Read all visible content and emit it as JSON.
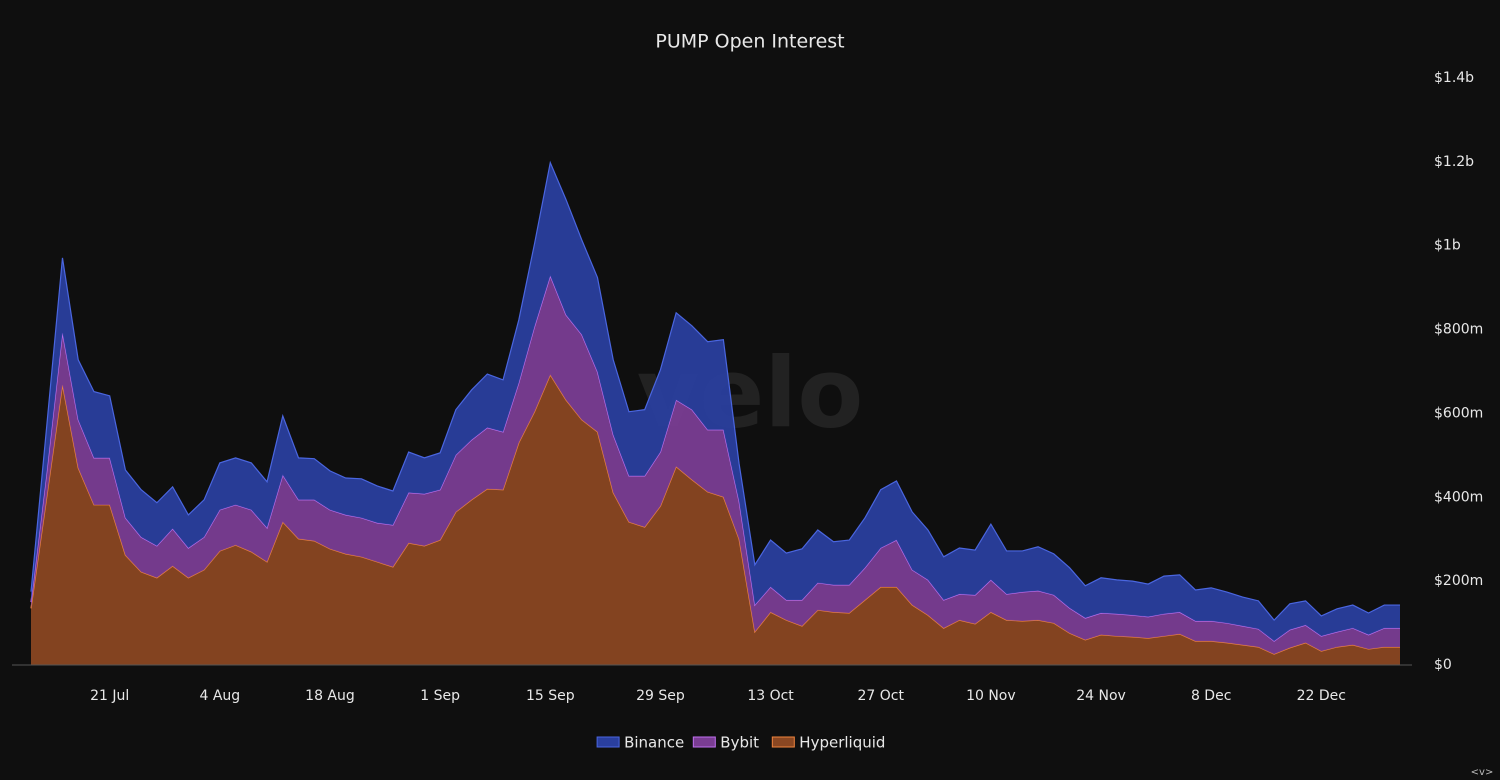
{
  "chart_data": {
    "type": "stacked_area",
    "title": "PUMP Open Interest",
    "watermark": "velo",
    "corner_mark": "<v>",
    "x": [
      "11 Jul",
      "13 Jul",
      "15 Jul",
      "17 Jul",
      "19 Jul",
      "21 Jul",
      "23 Jul",
      "25 Jul",
      "27 Jul",
      "29 Jul",
      "31 Jul",
      "2 Aug",
      "4 Aug",
      "6 Aug",
      "8 Aug",
      "10 Aug",
      "12 Aug",
      "14 Aug",
      "16 Aug",
      "18 Aug",
      "20 Aug",
      "22 Aug",
      "24 Aug",
      "26 Aug",
      "28 Aug",
      "30 Aug",
      "1 Sep",
      "3 Sep",
      "5 Sep",
      "7 Sep",
      "9 Sep",
      "11 Sep",
      "13 Sep",
      "15 Sep",
      "17 Sep",
      "19 Sep",
      "21 Sep",
      "23 Sep",
      "25 Sep",
      "27 Sep",
      "29 Sep",
      "1 Oct",
      "3 Oct",
      "5 Oct",
      "7 Oct",
      "9 Oct",
      "11 Oct",
      "13 Oct",
      "15 Oct",
      "17 Oct",
      "19 Oct",
      "21 Oct",
      "23 Oct",
      "25 Oct",
      "27 Oct",
      "29 Oct",
      "31 Oct",
      "2 Nov",
      "4 Nov",
      "6 Nov",
      "8 Nov",
      "10 Nov",
      "12 Nov",
      "14 Nov",
      "16 Nov",
      "18 Nov",
      "20 Nov",
      "22 Nov",
      "24 Nov",
      "26 Nov",
      "28 Nov",
      "30 Nov",
      "2 Dec",
      "4 Dec",
      "6 Dec",
      "8 Dec",
      "10 Dec",
      "12 Dec",
      "14 Dec",
      "16 Dec",
      "18 Dec",
      "20 Dec",
      "22 Dec",
      "24 Dec",
      "26 Dec",
      "28 Dec",
      "30 Dec",
      "1 Jan"
    ],
    "xticks": [
      "21 Jul",
      "4 Aug",
      "18 Aug",
      "1 Sep",
      "15 Sep",
      "29 Sep",
      "13 Oct",
      "27 Oct",
      "10 Nov",
      "24 Nov",
      "8 Dec",
      "22 Dec"
    ],
    "series": [
      {
        "name": "Hyperliquid",
        "color": "#8a4722",
        "line_color": "#f0843e",
        "values": [
          135,
          400,
          668,
          470,
          382,
          382,
          262,
          222,
          208,
          236,
          208,
          227,
          272,
          286,
          270,
          246,
          341,
          301,
          296,
          277,
          265,
          258,
          246,
          234,
          291,
          284,
          298,
          365,
          394,
          420,
          418,
          530,
          604,
          692,
          632,
          585,
          556,
          411,
          341,
          329,
          379,
          473,
          442,
          413,
          401,
          300,
          79,
          126,
          107,
          93,
          131,
          126,
          124,
          155,
          186,
          186,
          143,
          119,
          88,
          107,
          98,
          126,
          107,
          105,
          107,
          100,
          76,
          60,
          72,
          69,
          67,
          64,
          69,
          74,
          57,
          57,
          53,
          48,
          43,
          26,
          41,
          53,
          33,
          43,
          48,
          38,
          43,
          43
        ]
      },
      {
        "name": "Bybit",
        "color": "#7a3d93",
        "line_color": "#c070f0",
        "values": [
          15,
          60,
          124,
          115,
          112,
          112,
          89,
          83,
          76,
          89,
          71,
          78,
          98,
          96,
          100,
          81,
          112,
          93,
          98,
          93,
          93,
          93,
          93,
          100,
          120,
          124,
          120,
          136,
          143,
          146,
          138,
          143,
          203,
          236,
          203,
          203,
          143,
          138,
          110,
          122,
          129,
          159,
          167,
          148,
          160,
          90,
          64,
          60,
          48,
          62,
          65,
          65,
          67,
          77,
          93,
          112,
          84,
          84,
          67,
          62,
          69,
          77,
          62,
          69,
          70,
          67,
          60,
          52,
          52,
          53,
          52,
          51,
          53,
          52,
          48,
          48,
          47,
          45,
          43,
          31,
          43,
          42,
          36,
          36,
          40,
          34,
          45,
          45
        ]
      },
      {
        "name": "Binance",
        "color": "#2a3f9e",
        "line_color": "#4a66e0",
        "values": [
          25,
          110,
          179,
          143,
          158,
          148,
          114,
          113,
          103,
          100,
          79,
          89,
          112,
          112,
          112,
          110,
          141,
          100,
          98,
          93,
          88,
          93,
          88,
          81,
          97,
          86,
          88,
          108,
          119,
          128,
          124,
          150,
          198,
          270,
          275,
          226,
          225,
          179,
          153,
          158,
          196,
          208,
          200,
          210,
          215,
          90,
          96,
          112,
          112,
          122,
          126,
          103,
          107,
          119,
          139,
          141,
          138,
          119,
          103,
          110,
          107,
          133,
          103,
          98,
          105,
          98,
          96,
          77,
          84,
          81,
          81,
          78,
          90,
          89,
          74,
          79,
          74,
          69,
          67,
          50,
          62,
          58,
          48,
          55,
          55,
          52,
          55,
          55
        ]
      }
    ],
    "ylim": [
      0,
      1400
    ],
    "yticks": [
      {
        "value": 0,
        "label": "$0"
      },
      {
        "value": 200,
        "label": "$200m"
      },
      {
        "value": 400,
        "label": "$400m"
      },
      {
        "value": 600,
        "label": "$600m"
      },
      {
        "value": 800,
        "label": "$800m"
      },
      {
        "value": 1000,
        "label": "$1b"
      },
      {
        "value": 1200,
        "label": "$1.2b"
      },
      {
        "value": 1400,
        "label": "$1.4b"
      }
    ],
    "legend_position": "bottom"
  }
}
